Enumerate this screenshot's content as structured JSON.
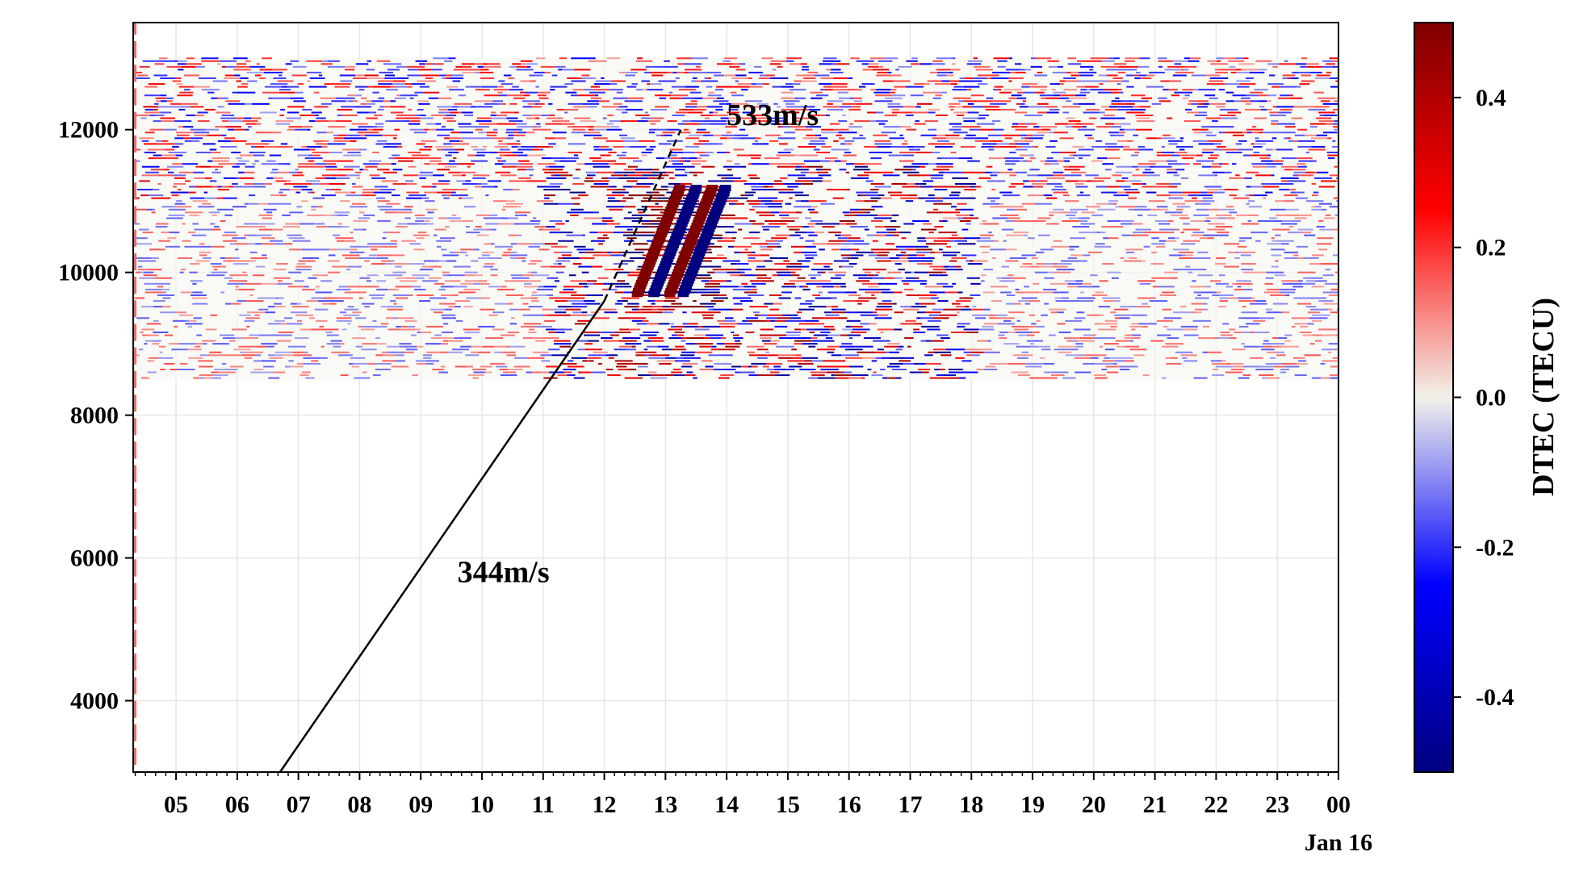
{
  "chart_data": {
    "type": "heatmap",
    "title": "",
    "xlabel": "",
    "ylabel": "",
    "x_ticks": [
      "05",
      "06",
      "07",
      "08",
      "09",
      "10",
      "11",
      "12",
      "13",
      "14",
      "15",
      "16",
      "17",
      "18",
      "19",
      "20",
      "21",
      "22",
      "23",
      "00"
    ],
    "x_secondary_label": "Jan 16",
    "xlim_hours": [
      4.3,
      24.0
    ],
    "y_ticks": [
      "4000",
      "6000",
      "8000",
      "10000",
      "12000"
    ],
    "y_tick_values": [
      4000,
      6000,
      8000,
      10000,
      12000
    ],
    "ylim": [
      3000,
      13500
    ],
    "grid": true,
    "colorbar": {
      "label": "DTEC (TECU)",
      "range": [
        -0.5,
        0.5
      ],
      "ticks": [
        "0.4",
        "0.2",
        "0.0",
        "-0.2",
        "-0.4"
      ],
      "tick_values": [
        0.4,
        0.2,
        0.0,
        -0.2,
        -0.4
      ],
      "colors": {
        "low": "#00007f",
        "mid_low": "#0000ff",
        "zero": "#f2f2ea",
        "mid_high": "#ff0000",
        "high": "#7f0000"
      }
    },
    "annotations": [
      {
        "text": "344m/s",
        "style": "solid",
        "from": {
          "x": 6.7,
          "y": 3000
        },
        "to": {
          "x": 12.0,
          "y": 9600
        }
      },
      {
        "text": "533m/s",
        "style": "dashed",
        "from": {
          "x": 12.0,
          "y": 9600
        },
        "to": {
          "x": 13.25,
          "y": 12000
        }
      }
    ]
  }
}
